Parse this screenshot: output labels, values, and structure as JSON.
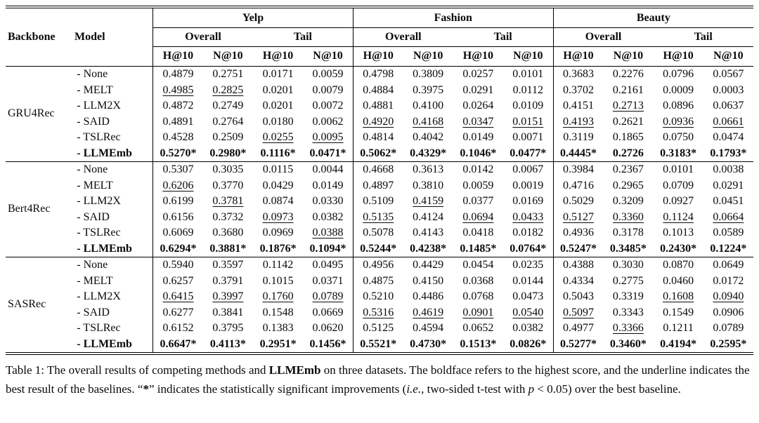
{
  "table": {
    "header": {
      "backbone": "Backbone",
      "model": "Model",
      "datasets": [
        "Yelp",
        "Fashion",
        "Beauty"
      ],
      "subgroups": [
        "Overall",
        "Tail"
      ],
      "metrics": [
        "H@10",
        "N@10"
      ]
    },
    "groups": [
      {
        "backbone": "GRU4Rec",
        "rows": [
          {
            "model": "- None",
            "values": [
              {
                "v": "0.4879"
              },
              {
                "v": "0.2751"
              },
              {
                "v": "0.0171"
              },
              {
                "v": "0.0059"
              },
              {
                "v": "0.4798"
              },
              {
                "v": "0.3809"
              },
              {
                "v": "0.0257"
              },
              {
                "v": "0.0101"
              },
              {
                "v": "0.3683"
              },
              {
                "v": "0.2276"
              },
              {
                "v": "0.0796"
              },
              {
                "v": "0.0567"
              }
            ]
          },
          {
            "model": "- MELT",
            "values": [
              {
                "v": "0.4985",
                "f": "u"
              },
              {
                "v": "0.2825",
                "f": "u"
              },
              {
                "v": "0.0201"
              },
              {
                "v": "0.0079"
              },
              {
                "v": "0.4884"
              },
              {
                "v": "0.3975"
              },
              {
                "v": "0.0291"
              },
              {
                "v": "0.0112"
              },
              {
                "v": "0.3702"
              },
              {
                "v": "0.2161"
              },
              {
                "v": "0.0009"
              },
              {
                "v": "0.0003"
              }
            ]
          },
          {
            "model": "- LLM2X",
            "values": [
              {
                "v": "0.4872"
              },
              {
                "v": "0.2749"
              },
              {
                "v": "0.0201"
              },
              {
                "v": "0.0072"
              },
              {
                "v": "0.4881"
              },
              {
                "v": "0.4100"
              },
              {
                "v": "0.0264"
              },
              {
                "v": "0.0109"
              },
              {
                "v": "0.4151"
              },
              {
                "v": "0.2713",
                "f": "u"
              },
              {
                "v": "0.0896"
              },
              {
                "v": "0.0637"
              }
            ]
          },
          {
            "model": "- SAID",
            "values": [
              {
                "v": "0.4891"
              },
              {
                "v": "0.2764"
              },
              {
                "v": "0.0180"
              },
              {
                "v": "0.0062"
              },
              {
                "v": "0.4920",
                "f": "u"
              },
              {
                "v": "0.4168",
                "f": "u"
              },
              {
                "v": "0.0347",
                "f": "u"
              },
              {
                "v": "0.0151",
                "f": "u"
              },
              {
                "v": "0.4193",
                "f": "u"
              },
              {
                "v": "0.2621"
              },
              {
                "v": "0.0936",
                "f": "u"
              },
              {
                "v": "0.0661",
                "f": "u"
              }
            ]
          },
          {
            "model": "- TSLRec",
            "values": [
              {
                "v": "0.4528"
              },
              {
                "v": "0.2509"
              },
              {
                "v": "0.0255",
                "f": "u"
              },
              {
                "v": "0.0095",
                "f": "u"
              },
              {
                "v": "0.4814"
              },
              {
                "v": "0.4042"
              },
              {
                "v": "0.0149"
              },
              {
                "v": "0.0071"
              },
              {
                "v": "0.3119"
              },
              {
                "v": "0.1865"
              },
              {
                "v": "0.0750"
              },
              {
                "v": "0.0474"
              }
            ]
          },
          {
            "model": "- LLMEmb",
            "f": "b",
            "values": [
              {
                "v": "0.5270*",
                "f": "b"
              },
              {
                "v": "0.2980*",
                "f": "b"
              },
              {
                "v": "0.1116*",
                "f": "b"
              },
              {
                "v": "0.0471*",
                "f": "b"
              },
              {
                "v": "0.5062*",
                "f": "b"
              },
              {
                "v": "0.4329*",
                "f": "b"
              },
              {
                "v": "0.1046*",
                "f": "b"
              },
              {
                "v": "0.0477*",
                "f": "b"
              },
              {
                "v": "0.4445*",
                "f": "b"
              },
              {
                "v": "0.2726",
                "f": "b"
              },
              {
                "v": "0.3183*",
                "f": "b"
              },
              {
                "v": "0.1793*",
                "f": "b"
              }
            ]
          }
        ]
      },
      {
        "backbone": "Bert4Rec",
        "rows": [
          {
            "model": "- None",
            "values": [
              {
                "v": "0.5307"
              },
              {
                "v": "0.3035"
              },
              {
                "v": "0.0115"
              },
              {
                "v": "0.0044"
              },
              {
                "v": "0.4668"
              },
              {
                "v": "0.3613"
              },
              {
                "v": "0.0142"
              },
              {
                "v": "0.0067"
              },
              {
                "v": "0.3984"
              },
              {
                "v": "0.2367"
              },
              {
                "v": "0.0101"
              },
              {
                "v": "0.0038"
              }
            ]
          },
          {
            "model": "- MELT",
            "values": [
              {
                "v": "0.6206",
                "f": "u"
              },
              {
                "v": "0.3770"
              },
              {
                "v": "0.0429"
              },
              {
                "v": "0.0149"
              },
              {
                "v": "0.4897"
              },
              {
                "v": "0.3810"
              },
              {
                "v": "0.0059"
              },
              {
                "v": "0.0019"
              },
              {
                "v": "0.4716"
              },
              {
                "v": "0.2965"
              },
              {
                "v": "0.0709"
              },
              {
                "v": "0.0291"
              }
            ]
          },
          {
            "model": "- LLM2X",
            "values": [
              {
                "v": "0.6199"
              },
              {
                "v": "0.3781",
                "f": "u"
              },
              {
                "v": "0.0874"
              },
              {
                "v": "0.0330"
              },
              {
                "v": "0.5109"
              },
              {
                "v": "0.4159",
                "f": "u"
              },
              {
                "v": "0.0377"
              },
              {
                "v": "0.0169"
              },
              {
                "v": "0.5029"
              },
              {
                "v": "0.3209"
              },
              {
                "v": "0.0927"
              },
              {
                "v": "0.0451"
              }
            ]
          },
          {
            "model": "- SAID",
            "values": [
              {
                "v": "0.6156"
              },
              {
                "v": "0.3732"
              },
              {
                "v": "0.0973",
                "f": "u"
              },
              {
                "v": "0.0382"
              },
              {
                "v": "0.5135",
                "f": "u"
              },
              {
                "v": "0.4124"
              },
              {
                "v": "0.0694",
                "f": "u"
              },
              {
                "v": "0.0433",
                "f": "u"
              },
              {
                "v": "0.5127",
                "f": "u"
              },
              {
                "v": "0.3360",
                "f": "u"
              },
              {
                "v": "0.1124",
                "f": "u"
              },
              {
                "v": "0.0664",
                "f": "u"
              }
            ]
          },
          {
            "model": "- TSLRec",
            "values": [
              {
                "v": "0.6069"
              },
              {
                "v": "0.3680"
              },
              {
                "v": "0.0969"
              },
              {
                "v": "0.0388",
                "f": "u"
              },
              {
                "v": "0.5078"
              },
              {
                "v": "0.4143"
              },
              {
                "v": "0.0418"
              },
              {
                "v": "0.0182"
              },
              {
                "v": "0.4936"
              },
              {
                "v": "0.3178"
              },
              {
                "v": "0.1013"
              },
              {
                "v": "0.0589"
              }
            ]
          },
          {
            "model": "- LLMEmb",
            "f": "b",
            "values": [
              {
                "v": "0.6294*",
                "f": "b"
              },
              {
                "v": "0.3881*",
                "f": "b"
              },
              {
                "v": "0.1876*",
                "f": "b"
              },
              {
                "v": "0.1094*",
                "f": "b"
              },
              {
                "v": "0.5244*",
                "f": "b"
              },
              {
                "v": "0.4238*",
                "f": "b"
              },
              {
                "v": "0.1485*",
                "f": "b"
              },
              {
                "v": "0.0764*",
                "f": "b"
              },
              {
                "v": "0.5247*",
                "f": "b"
              },
              {
                "v": "0.3485*",
                "f": "b"
              },
              {
                "v": "0.2430*",
                "f": "b"
              },
              {
                "v": "0.1224*",
                "f": "b"
              }
            ]
          }
        ]
      },
      {
        "backbone": "SASRec",
        "rows": [
          {
            "model": "- None",
            "values": [
              {
                "v": "0.5940"
              },
              {
                "v": "0.3597"
              },
              {
                "v": "0.1142"
              },
              {
                "v": "0.0495"
              },
              {
                "v": "0.4956"
              },
              {
                "v": "0.4429"
              },
              {
                "v": "0.0454"
              },
              {
                "v": "0.0235"
              },
              {
                "v": "0.4388"
              },
              {
                "v": "0.3030"
              },
              {
                "v": "0.0870"
              },
              {
                "v": "0.0649"
              }
            ]
          },
          {
            "model": "- MELT",
            "values": [
              {
                "v": "0.6257"
              },
              {
                "v": "0.3791"
              },
              {
                "v": "0.1015"
              },
              {
                "v": "0.0371"
              },
              {
                "v": "0.4875"
              },
              {
                "v": "0.4150"
              },
              {
                "v": "0.0368"
              },
              {
                "v": "0.0144"
              },
              {
                "v": "0.4334"
              },
              {
                "v": "0.2775"
              },
              {
                "v": "0.0460"
              },
              {
                "v": "0.0172"
              }
            ]
          },
          {
            "model": "- LLM2X",
            "values": [
              {
                "v": "0.6415",
                "f": "u"
              },
              {
                "v": "0.3997",
                "f": "u"
              },
              {
                "v": "0.1760",
                "f": "u"
              },
              {
                "v": "0.0789",
                "f": "u"
              },
              {
                "v": "0.5210"
              },
              {
                "v": "0.4486"
              },
              {
                "v": "0.0768"
              },
              {
                "v": "0.0473"
              },
              {
                "v": "0.5043"
              },
              {
                "v": "0.3319"
              },
              {
                "v": "0.1608",
                "f": "u"
              },
              {
                "v": "0.0940",
                "f": "u"
              }
            ]
          },
          {
            "model": "- SAID",
            "values": [
              {
                "v": "0.6277"
              },
              {
                "v": "0.3841"
              },
              {
                "v": "0.1548"
              },
              {
                "v": "0.0669"
              },
              {
                "v": "0.5316",
                "f": "u"
              },
              {
                "v": "0.4619",
                "f": "u"
              },
              {
                "v": "0.0901",
                "f": "u"
              },
              {
                "v": "0.0540",
                "f": "u"
              },
              {
                "v": "0.5097",
                "f": "u"
              },
              {
                "v": "0.3343"
              },
              {
                "v": "0.1549"
              },
              {
                "v": "0.0906"
              }
            ]
          },
          {
            "model": "- TSLRec",
            "values": [
              {
                "v": "0.6152"
              },
              {
                "v": "0.3795"
              },
              {
                "v": "0.1383"
              },
              {
                "v": "0.0620"
              },
              {
                "v": "0.5125"
              },
              {
                "v": "0.4594"
              },
              {
                "v": "0.0652"
              },
              {
                "v": "0.0382"
              },
              {
                "v": "0.4977"
              },
              {
                "v": "0.3366",
                "f": "u"
              },
              {
                "v": "0.1211"
              },
              {
                "v": "0.0789"
              }
            ]
          },
          {
            "model": "- LLMEmb",
            "f": "b",
            "values": [
              {
                "v": "0.6647*",
                "f": "b"
              },
              {
                "v": "0.4113*",
                "f": "b"
              },
              {
                "v": "0.2951*",
                "f": "b"
              },
              {
                "v": "0.1456*",
                "f": "b"
              },
              {
                "v": "0.5521*",
                "f": "b"
              },
              {
                "v": "0.4730*",
                "f": "b"
              },
              {
                "v": "0.1513*",
                "f": "b"
              },
              {
                "v": "0.0826*",
                "f": "b"
              },
              {
                "v": "0.5277*",
                "f": "b"
              },
              {
                "v": "0.3460*",
                "f": "b"
              },
              {
                "v": "0.4194*",
                "f": "b"
              },
              {
                "v": "0.2595*",
                "f": "b"
              }
            ]
          }
        ]
      }
    ]
  },
  "caption": {
    "parts": [
      {
        "t": "Table 1: The overall results of competing methods and "
      },
      {
        "t": "LLMEmb",
        "f": "b"
      },
      {
        "t": " on three datasets. The boldface refers to the highest score, and the underline indicates the best result of the baselines. “"
      },
      {
        "t": "*",
        "f": "b"
      },
      {
        "t": "” indicates the statistically significant improvements ("
      },
      {
        "t": "i.e.,",
        "f": "i"
      },
      {
        "t": " two-sided t-test with "
      },
      {
        "t": "p",
        "f": "i"
      },
      {
        "t": " < 0.05) over the best baseline."
      }
    ]
  }
}
